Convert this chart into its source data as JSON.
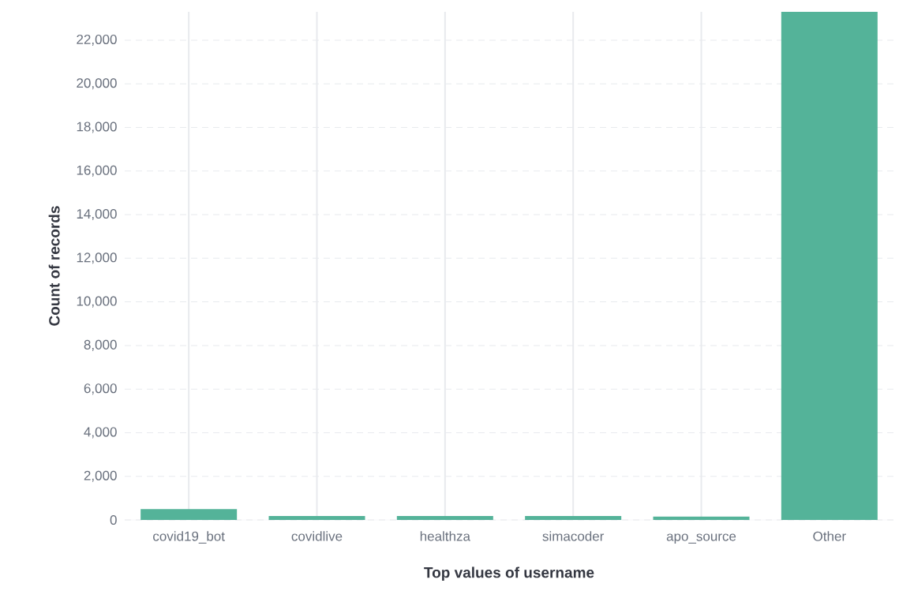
{
  "chart_data": {
    "type": "bar",
    "xlabel": "Top values of username",
    "ylabel": "Count of records",
    "categories": [
      "covid19_bot",
      "covidlive",
      "healthza",
      "simacoder",
      "apo_source",
      "Other"
    ],
    "values": [
      500,
      180,
      180,
      180,
      150,
      23300
    ],
    "color": "#54b399",
    "ylim": [
      0,
      23300
    ],
    "yticks": [
      0,
      {
        "value": 2000,
        "label": "2,000"
      },
      {
        "value": 4000,
        "label": "4,000"
      },
      {
        "value": 6000,
        "label": "6,000"
      },
      {
        "value": 8000,
        "label": "8,000"
      },
      {
        "value": 10000,
        "label": "10,000"
      },
      {
        "value": 12000,
        "label": "12,000"
      },
      {
        "value": 14000,
        "label": "14,000"
      },
      {
        "value": 16000,
        "label": "16,000"
      },
      {
        "value": 18000,
        "label": "18,000"
      },
      {
        "value": 20000,
        "label": "20,000"
      },
      {
        "value": 22000,
        "label": "22,000"
      }
    ],
    "grid": true
  }
}
